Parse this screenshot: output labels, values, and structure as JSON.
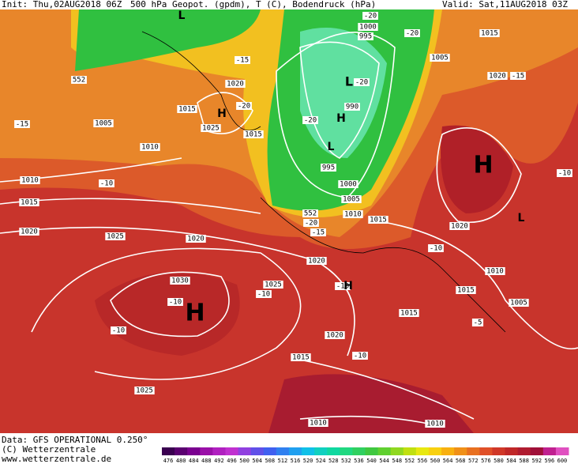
{
  "header": {
    "init": "Init: Thu,02AUG2018 06Z",
    "title": "500 hPa Geopot. (gpdm), T (C), Bodendruck (hPa)",
    "valid": "Valid: Sat,11AUG2018 03Z"
  },
  "map": {
    "pressure_labels": [
      "552",
      "1020",
      "1015",
      "1025",
      "1005",
      "1010",
      "1015",
      "1010",
      "1015",
      "1020",
      "1025",
      "1020",
      "1030",
      "1025",
      "1025",
      "1015",
      "1020",
      "1015",
      "1010",
      "1010",
      "1015",
      "1010",
      "1005",
      "1020",
      "1015",
      "1010",
      "1005",
      "1000",
      "995",
      "990",
      "1000",
      "995",
      "1005",
      "1015",
      "1020",
      "1020",
      "552"
    ],
    "temperature_labels": [
      "-20",
      "-20",
      "-15",
      "-20",
      "-20",
      "-20",
      "-15",
      "-10",
      "-20",
      "-15",
      "-10",
      "-10",
      "-10",
      "-10",
      "-10",
      "-5",
      "-10",
      "-10",
      "-15"
    ],
    "centers": [
      "H",
      "H",
      "H",
      "L",
      "L",
      "H",
      "H",
      "L",
      "L"
    ]
  },
  "footer": {
    "data": "Data: GFS OPERATIONAL 0.250°",
    "copyright": "(C) Wetterzentrale",
    "url": "www.wetterzentrale.de"
  },
  "colorbar": {
    "ticks": [
      476,
      480,
      484,
      488,
      492,
      496,
      500,
      504,
      508,
      512,
      516,
      520,
      524,
      528,
      532,
      536,
      540,
      544,
      548,
      552,
      556,
      560,
      564,
      568,
      572,
      576,
      580,
      584,
      588,
      592,
      596,
      600
    ]
  }
}
